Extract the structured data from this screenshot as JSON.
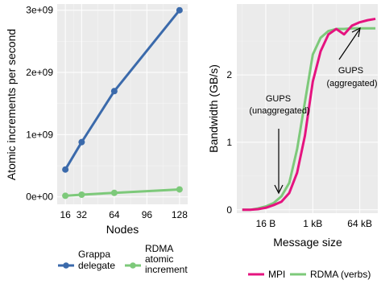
{
  "chart_data": [
    {
      "type": "line",
      "xlabel": "Nodes",
      "ylabel": "Atomic increments per second",
      "x_ticks": [
        "16",
        "32",
        "64",
        "96",
        "128"
      ],
      "y_ticks": [
        "0e+00",
        "1e+09",
        "2e+09",
        "3e+09"
      ],
      "xlim": [
        8,
        136
      ],
      "ylim": [
        -120000000.0,
        3100000000.0
      ],
      "grid": true,
      "legend_position": "bottom",
      "series": [
        {
          "name": "Grappa delegate",
          "color": "#3b6aab",
          "x": [
            16,
            32,
            64,
            128
          ],
          "y": [
            440000000,
            880000000,
            1700000000,
            3000000000
          ]
        },
        {
          "name": "RDMA atomic increment",
          "color": "#7dc97a",
          "x": [
            16,
            32,
            64,
            128
          ],
          "y": [
            18000000,
            35000000,
            65000000,
            120000000
          ]
        }
      ]
    },
    {
      "type": "line",
      "xlabel": "Message size",
      "ylabel": "Bandwidth (GB/s)",
      "x_scale": "log2",
      "x_ticks": [
        "16 B",
        "1 kB",
        "64 kB"
      ],
      "y_ticks": [
        "0",
        "1",
        "2"
      ],
      "ylim": [
        -0.05,
        3.05
      ],
      "grid": true,
      "legend_position": "bottom",
      "annotations": [
        {
          "text_lines": [
            "GUPS",
            "(unaggregated)"
          ]
        },
        {
          "text_lines": [
            "GUPS",
            "(aggregated)"
          ]
        }
      ],
      "series": [
        {
          "name": "MPI",
          "color": "#e5137f",
          "x_bytes": [
            2,
            4,
            8,
            16,
            32,
            64,
            128,
            256,
            512,
            1024,
            2048,
            4096,
            8192,
            16384,
            32768,
            65536,
            131072,
            262144
          ],
          "y": [
            0.0,
            0.0,
            0.01,
            0.03,
            0.07,
            0.12,
            0.25,
            0.55,
            1.1,
            1.9,
            2.35,
            2.6,
            2.68,
            2.6,
            2.73,
            2.78,
            2.81,
            2.83
          ]
        },
        {
          "name": "RDMA (verbs)",
          "color": "#7dc97a",
          "x_bytes": [
            2,
            4,
            8,
            16,
            32,
            64,
            128,
            256,
            512,
            1024,
            2048,
            4096,
            8192,
            16384,
            32768,
            65536,
            131072,
            262144
          ],
          "y": [
            0.0,
            0.0,
            0.02,
            0.05,
            0.1,
            0.2,
            0.4,
            0.9,
            1.6,
            2.3,
            2.55,
            2.65,
            2.68,
            2.68,
            2.69,
            2.69,
            2.69,
            2.69
          ]
        }
      ]
    }
  ]
}
